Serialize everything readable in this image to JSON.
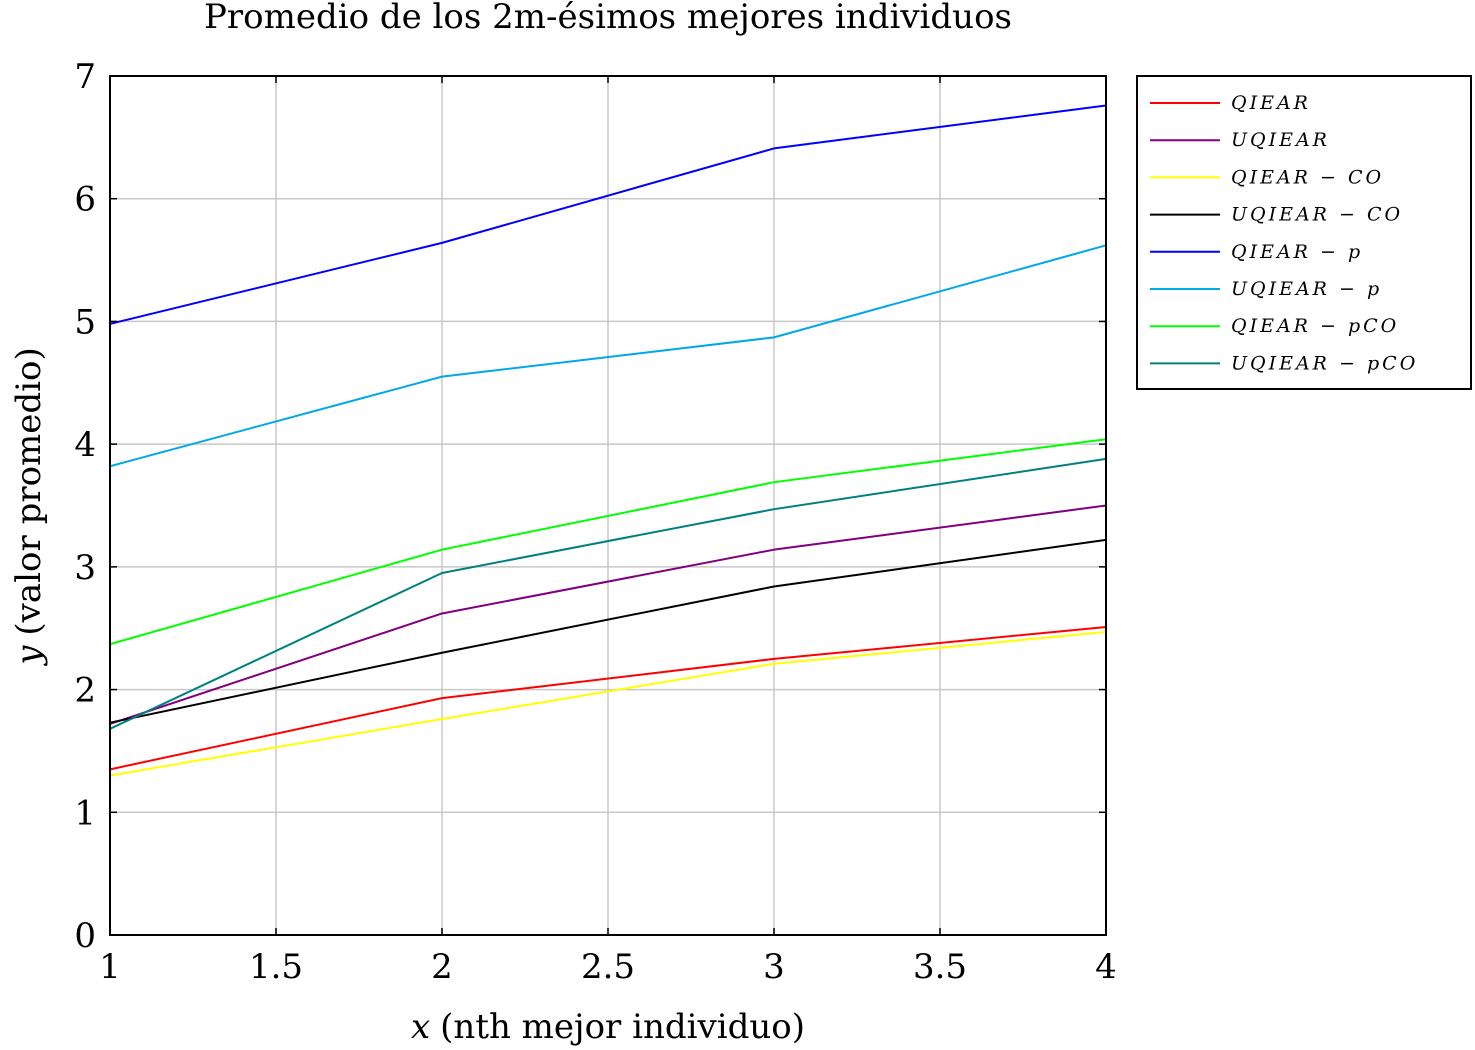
{
  "chart_data": {
    "type": "line",
    "title": "Promedio de los 2m-ésimos mejores individuos",
    "xlabel_var": "x",
    "xlabel_text": "(nth mejor individuo)",
    "ylabel_var": "y",
    "ylabel_text": "(valor promedio)",
    "xlim": [
      1,
      4
    ],
    "ylim": [
      0,
      7
    ],
    "xticks": [
      1,
      1.5,
      2,
      2.5,
      3,
      3.5,
      4
    ],
    "xtick_labels": [
      "1",
      "1.5",
      "2",
      "2.5",
      "3",
      "3.5",
      "4"
    ],
    "yticks": [
      0,
      1,
      2,
      3,
      4,
      5,
      6,
      7
    ],
    "ytick_labels": [
      "0",
      "1",
      "2",
      "3",
      "4",
      "5",
      "6",
      "7"
    ],
    "grid": true,
    "legend_position": "outside-top-right",
    "x": [
      1,
      2,
      3,
      4
    ],
    "series": [
      {
        "name": "QIEAR",
        "color": "#ff0000",
        "values": [
          1.35,
          1.93,
          2.25,
          2.51
        ]
      },
      {
        "name": "UQIEAR",
        "color": "#800080",
        "values": [
          1.72,
          2.62,
          3.14,
          3.5
        ]
      },
      {
        "name": "QIEAR − CO",
        "color": "#ffff00",
        "values": [
          1.3,
          1.76,
          2.21,
          2.47
        ]
      },
      {
        "name": "UQIEAR − CO",
        "color": "#000000",
        "values": [
          1.73,
          2.3,
          2.84,
          3.22
        ]
      },
      {
        "name": "QIEAR − p",
        "color": "#0000ff",
        "values": [
          4.98,
          5.64,
          6.41,
          6.76
        ]
      },
      {
        "name": "UQIEAR − p",
        "color": "#00a8e8",
        "values": [
          3.82,
          4.55,
          4.87,
          5.62
        ]
      },
      {
        "name": "QIEAR − pCO",
        "color": "#00ff00",
        "values": [
          2.37,
          3.14,
          3.69,
          4.04
        ]
      },
      {
        "name": "UQIEAR − pCO",
        "color": "#008080",
        "values": [
          1.68,
          2.95,
          3.47,
          3.88
        ]
      }
    ]
  }
}
